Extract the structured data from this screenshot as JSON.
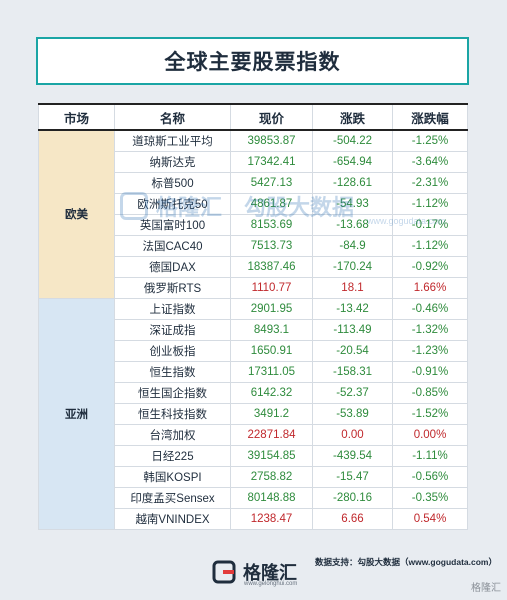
{
  "title": "全球主要股票指数",
  "headers": [
    "市场",
    "名称",
    "现价",
    "涨跌",
    "涨跌幅"
  ],
  "regions": [
    {
      "name": "欧美",
      "rows": [
        {
          "name": "道琼斯工业平均",
          "price": "39853.87",
          "change": "-504.22",
          "pct": "-1.25%",
          "dir": "neg"
        },
        {
          "name": "纳斯达克",
          "price": "17342.41",
          "change": "-654.94",
          "pct": "-3.64%",
          "dir": "neg"
        },
        {
          "name": "标普500",
          "price": "5427.13",
          "change": "-128.61",
          "pct": "-2.31%",
          "dir": "neg"
        },
        {
          "name": "欧洲斯托克50",
          "price": "4861.87",
          "change": "-54.93",
          "pct": "-1.12%",
          "dir": "neg"
        },
        {
          "name": "英国富时100",
          "price": "8153.69",
          "change": "-13.68",
          "pct": "-0.17%",
          "dir": "neg"
        },
        {
          "name": "法国CAC40",
          "price": "7513.73",
          "change": "-84.9",
          "pct": "-1.12%",
          "dir": "neg"
        },
        {
          "name": "德国DAX",
          "price": "18387.46",
          "change": "-170.24",
          "pct": "-0.92%",
          "dir": "neg"
        },
        {
          "name": "俄罗斯RTS",
          "price": "1110.77",
          "change": "18.1",
          "pct": "1.66%",
          "dir": "pos"
        }
      ]
    },
    {
      "name": "亚洲",
      "rows": [
        {
          "name": "上证指数",
          "price": "2901.95",
          "change": "-13.42",
          "pct": "-0.46%",
          "dir": "neg"
        },
        {
          "name": "深证成指",
          "price": "8493.1",
          "change": "-113.49",
          "pct": "-1.32%",
          "dir": "neg"
        },
        {
          "name": "创业板指",
          "price": "1650.91",
          "change": "-20.54",
          "pct": "-1.23%",
          "dir": "neg"
        },
        {
          "name": "恒生指数",
          "price": "17311.05",
          "change": "-158.31",
          "pct": "-0.91%",
          "dir": "neg"
        },
        {
          "name": "恒生国企指数",
          "price": "6142.32",
          "change": "-52.37",
          "pct": "-0.85%",
          "dir": "neg"
        },
        {
          "name": "恒生科技指数",
          "price": "3491.2",
          "change": "-53.89",
          "pct": "-1.52%",
          "dir": "neg"
        },
        {
          "name": "台湾加权",
          "price": "22871.84",
          "change": "0.00",
          "pct": "0.00%",
          "dir": "flat"
        },
        {
          "name": "日经225",
          "price": "39154.85",
          "change": "-439.54",
          "pct": "-1.11%",
          "dir": "neg"
        },
        {
          "name": "韩国KOSPI",
          "price": "2758.82",
          "change": "-15.47",
          "pct": "-0.56%",
          "dir": "neg"
        },
        {
          "name": "印度孟买Sensex",
          "price": "80148.88",
          "change": "-280.16",
          "pct": "-0.35%",
          "dir": "neg"
        },
        {
          "name": "越南VNINDEX",
          "price": "1238.47",
          "change": "6.66",
          "pct": "0.54%",
          "dir": "pos"
        }
      ]
    }
  ],
  "watermark": {
    "brand": "格隆汇",
    "brand2": "勾股大数据",
    "url": "www.gogudata.com"
  },
  "source": "数据支持：勾股大数据（www.gogudata.com）",
  "footer_logo": {
    "text": "格隆汇",
    "sub": "www.gelonghui.com"
  },
  "corner_mark": "格隆汇",
  "colors": {
    "down": "#2e8b3c",
    "up": "#c0282c",
    "accent": "#1aa5a5",
    "eu_bg": "#f6e7c6",
    "asia_bg": "#d7e6f3"
  }
}
